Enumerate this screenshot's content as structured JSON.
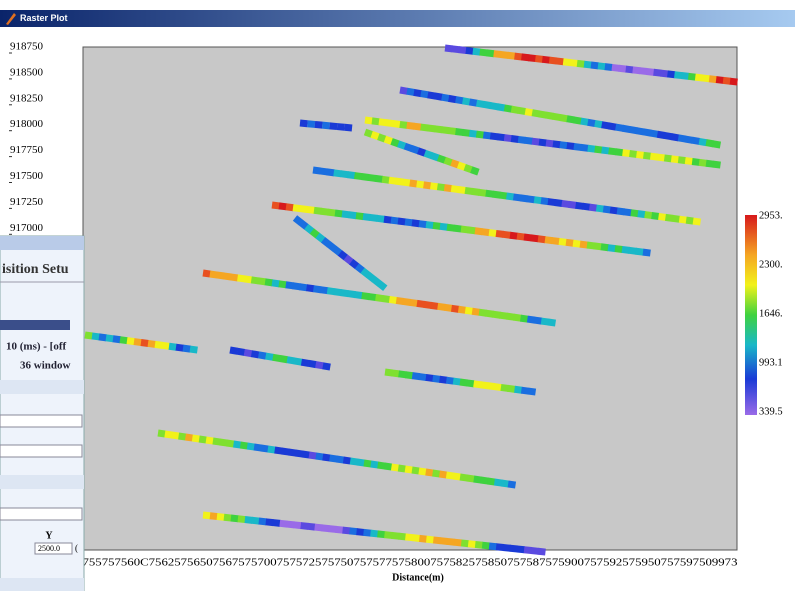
{
  "window": {
    "title": "Raster Plot"
  },
  "plot": {
    "y_ticks": [
      918750,
      918500,
      918250,
      918000,
      917750,
      917500,
      917250,
      917000
    ],
    "x_tick_text": "755757560C75625756507567575700757572575750757577575800757582575850757587575900757592575950757597509973",
    "x_label": "Distance(m)",
    "colorbar_labels": [
      "2953.",
      "2300.",
      "1646.",
      "993.1",
      "339.5"
    ]
  },
  "background_window": {
    "title": "isition Setu",
    "row_1": "10 (ms) - [off",
    "row_2": "36 window",
    "column": "Y",
    "field": "2500.0",
    "field_suffix": "("
  }
}
